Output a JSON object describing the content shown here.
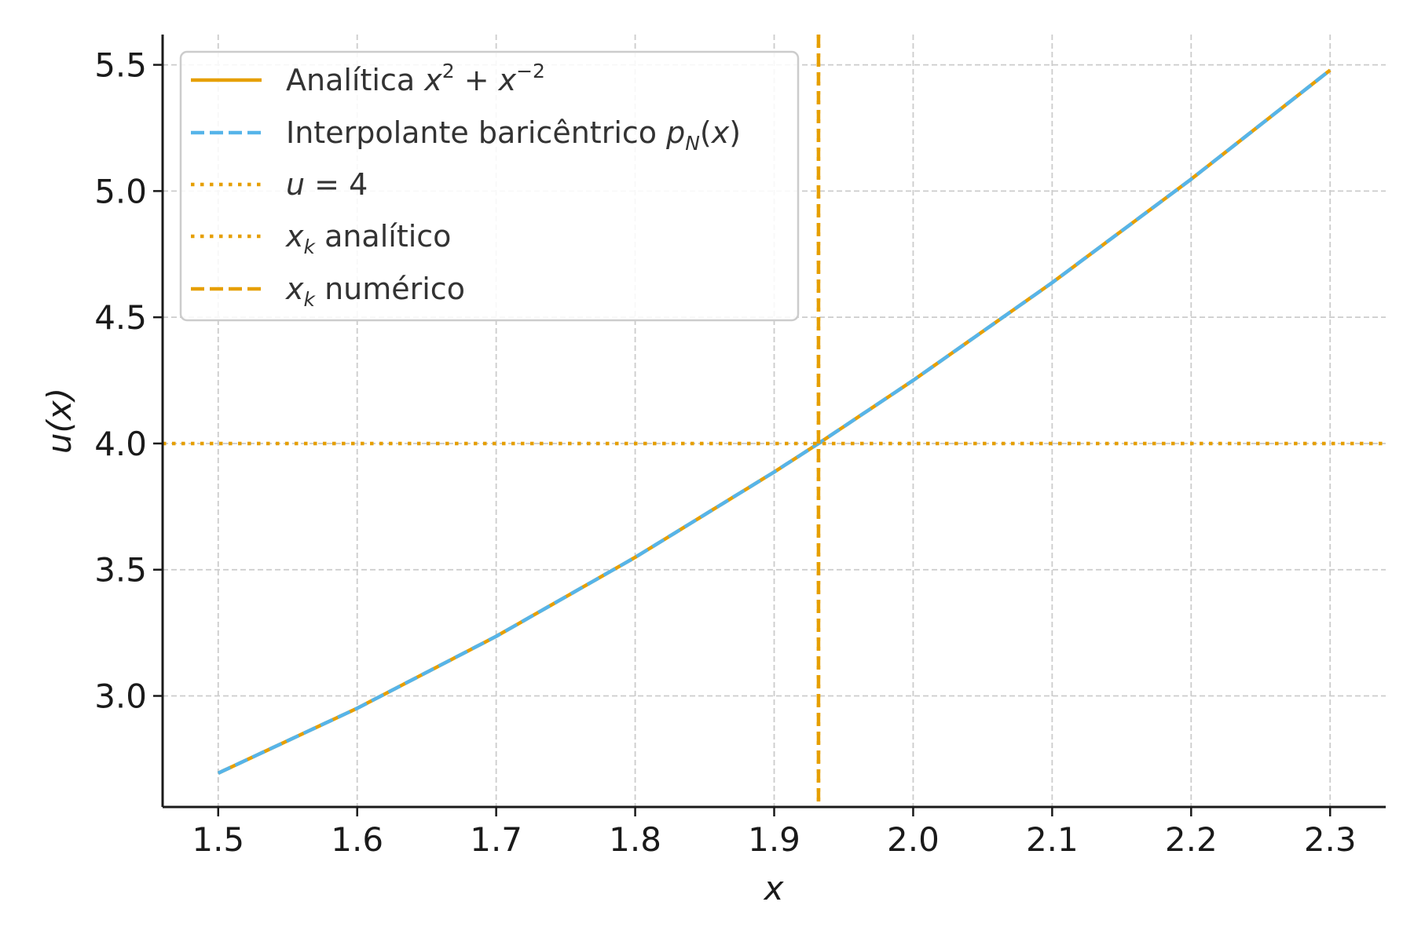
{
  "chart_data": {
    "type": "line",
    "xlabel": "x",
    "ylabel": "u(x)",
    "xlim": [
      1.46,
      2.34
    ],
    "ylim": [
      2.56,
      5.62
    ],
    "xticks": [
      "1.5",
      "1.6",
      "1.7",
      "1.8",
      "1.9",
      "2.0",
      "2.1",
      "2.2",
      "2.3"
    ],
    "yticks": [
      "3.0",
      "3.5",
      "4.0",
      "4.5",
      "5.0",
      "5.5"
    ],
    "grid": true,
    "legend_position": "top-left",
    "series": [
      {
        "name": "Analítica x^2 + x^-2",
        "style": "solid",
        "color": "#E69F00",
        "x": [
          1.5,
          1.6,
          1.7,
          1.8,
          1.9,
          1.9319,
          2.0,
          2.1,
          2.2,
          2.3
        ],
        "y": [
          2.694,
          2.951,
          3.236,
          3.549,
          3.887,
          4.0,
          4.25,
          4.637,
          5.047,
          5.479
        ]
      },
      {
        "name": "Interpolante baricêntrico p_N(x)",
        "style": "dashed",
        "color": "#56B4E9",
        "x": [
          1.5,
          1.6,
          1.7,
          1.8,
          1.9,
          1.9319,
          2.0,
          2.1,
          2.2,
          2.3
        ],
        "y": [
          2.694,
          2.951,
          3.236,
          3.549,
          3.887,
          4.0,
          4.25,
          4.637,
          5.047,
          5.479
        ]
      },
      {
        "name": "u = 4",
        "style": "dotted",
        "color": "#E69F00",
        "orientation": "horizontal",
        "value": 4.0
      },
      {
        "name": "x_k analítico",
        "style": "dotted",
        "color": "#E69F00",
        "orientation": "vertical",
        "value": 1.9319
      },
      {
        "name": "x_k numérico",
        "style": "dashed",
        "color": "#E69F00",
        "orientation": "vertical",
        "value": 1.9319
      }
    ]
  },
  "legend": {
    "analitica_prefix": "Analítica ",
    "interp_prefix": "Interpolante baricêntrico ",
    "xk_analitico_suffix": " analítico",
    "xk_numerico_suffix": " numérico"
  },
  "colors": {
    "orange": "#E69F00",
    "sky": "#56B4E9",
    "grid": "#cccccc",
    "axis": "#1a1a1a"
  }
}
